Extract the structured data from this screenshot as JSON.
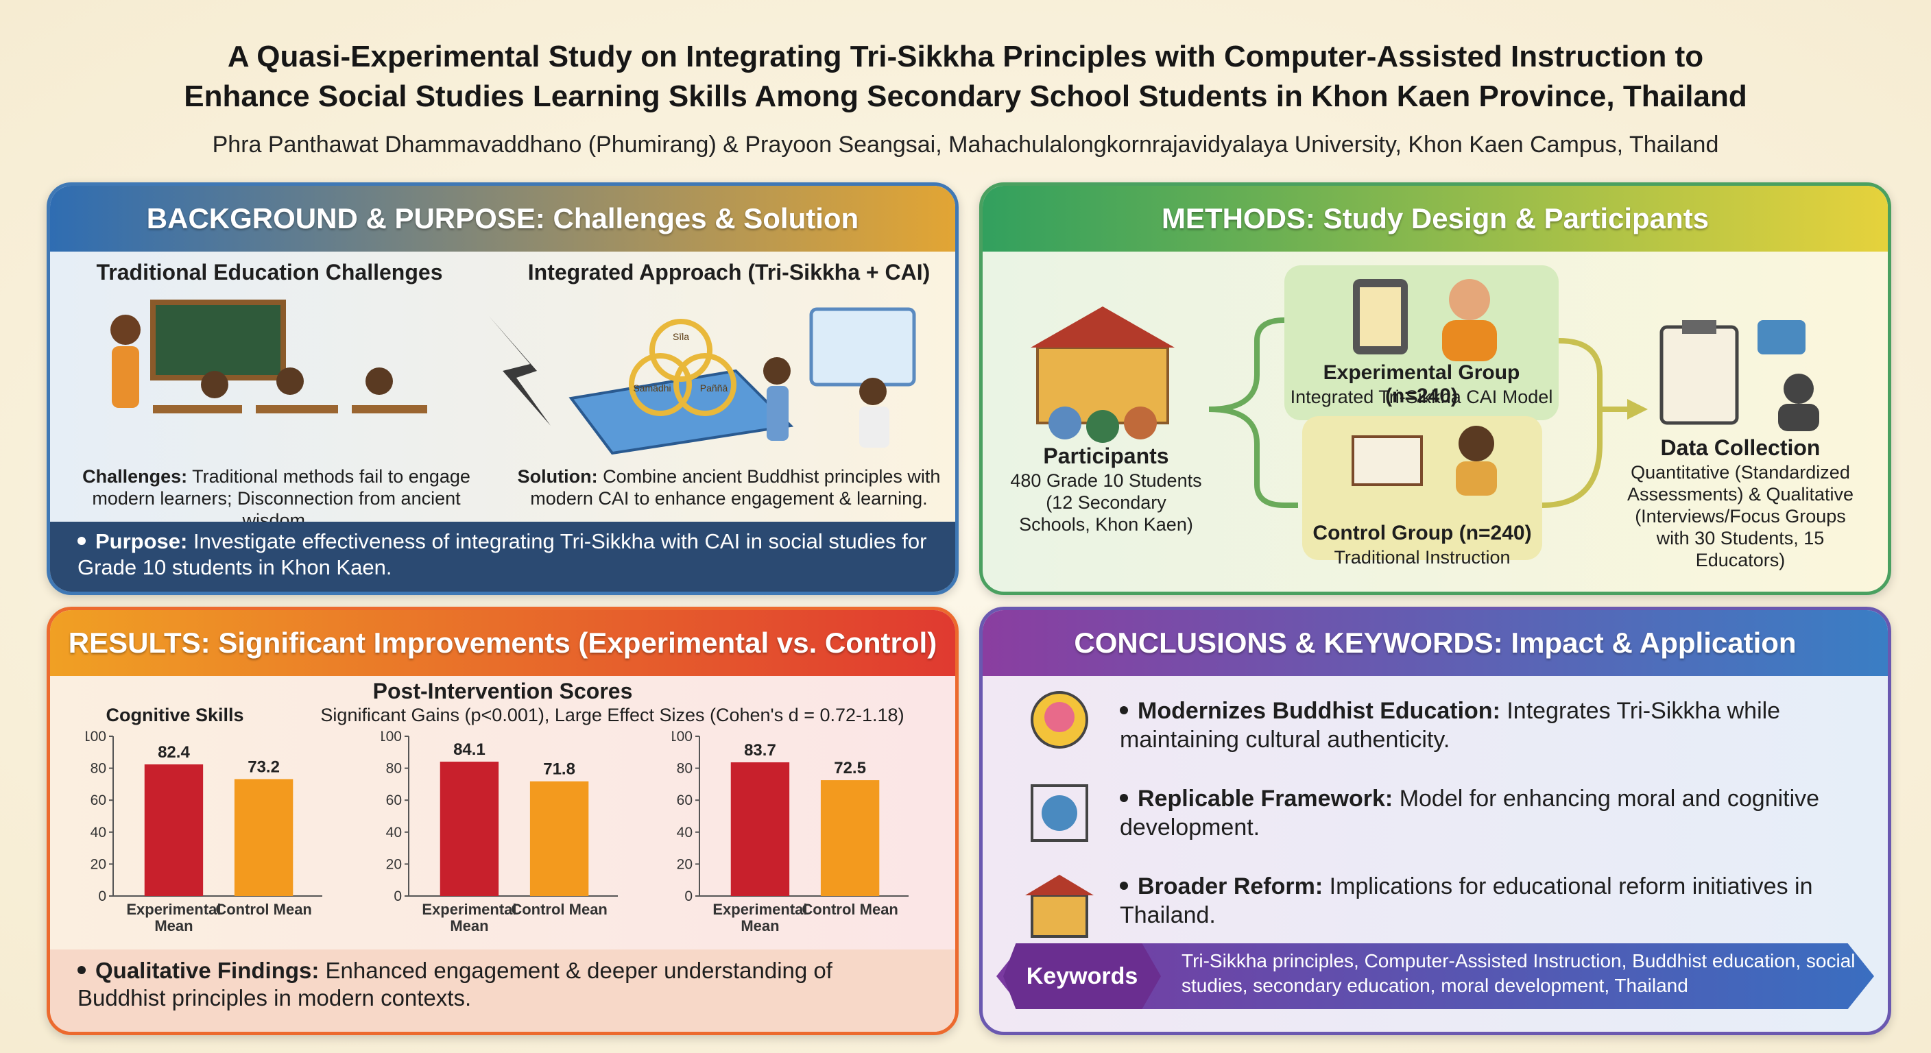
{
  "title_lines": [
    "A Quasi-Experimental Study on Integrating Tri-Sikkha Principles with Computer-Assisted Instruction to",
    "Enhance Social Studies Learning Skills Among Secondary School Students in Khon Kaen Province, Thailand"
  ],
  "authors": "Phra Panthawat Dhammavaddhano (Phumirang) & Prayoon Seangsai, Mahachulalongkornrajavidyalaya University, Khon Kaen Campus, Thailand",
  "background": {
    "heading": "BACKGROUND & PURPOSE: Challenges & Solution",
    "left_title": "Traditional Education Challenges",
    "right_title": "Integrated Approach (Tri-Sikkha + CAI)",
    "tri_labels": [
      "Sīla",
      "Samādhi",
      "Paññā"
    ],
    "challenges_label": "Challenges:",
    "challenges_text": "Traditional methods fail to engage modern learners; Disconnection from ancient wisdom.",
    "solution_label": "Solution:",
    "solution_text": "Combine ancient Buddhist principles with modern CAI to enhance engagement & learning.",
    "purpose_label": "Purpose:",
    "purpose_text": "Investigate effectiveness of integrating Tri-Sikkha with CAI in social studies for Grade 10 students in Khon Kaen."
  },
  "methods": {
    "heading": "METHODS: Study Design & Participants",
    "participants": {
      "title": "Participants",
      "text": "480 Grade 10 Students (12 Secondary Schools, Khon Kaen)"
    },
    "experimental": {
      "title": "Experimental Group (n=240)",
      "text": "Integrated Tri-Sikkha CAI Model"
    },
    "control": {
      "title": "Control Group (n=240)",
      "text": "Traditional Instruction"
    },
    "data_collection": {
      "title": "Data Collection",
      "text": "Quantitative (Standardized Assessments) & Qualitative (Interviews/Focus Groups with 30 Students, 15 Educators)"
    }
  },
  "results": {
    "heading": "RESULTS: Significant Improvements (Experimental vs. Control)",
    "chart_title": "Post-Intervention Scores",
    "chart_subtitle": "Significant Gains (p<0.001), Large Effect Sizes (Cohen's d = 0.72-1.18)",
    "qual_label": "Qualitative Findings:",
    "qual_text": "Enhanced engagement & deeper understanding of Buddhist principles in modern contexts."
  },
  "chart_data": [
    {
      "type": "bar",
      "title": "Cognitive Skills",
      "categories": [
        "Experimental Mean",
        "Control Mean"
      ],
      "values": [
        82.4,
        73.2
      ],
      "colors": [
        "#c8202c",
        "#f39a1e"
      ],
      "ylim": [
        0,
        100
      ],
      "yticks": [
        0,
        20,
        40,
        60,
        80,
        100
      ]
    },
    {
      "type": "bar",
      "categories": [
        "Experimental Mean",
        "Control Mean"
      ],
      "values": [
        84.1,
        71.8
      ],
      "colors": [
        "#c8202c",
        "#f39a1e"
      ],
      "ylim": [
        0,
        100
      ],
      "yticks": [
        0,
        20,
        40,
        60,
        80,
        100
      ]
    },
    {
      "type": "bar",
      "categories": [
        "Experimental Mean",
        "Control Mean"
      ],
      "values": [
        83.7,
        72.5
      ],
      "colors": [
        "#c8202c",
        "#f39a1e"
      ],
      "ylim": [
        0,
        100
      ],
      "yticks": [
        0,
        20,
        40,
        60,
        80,
        100
      ]
    }
  ],
  "conclusions": {
    "heading": "CONCLUSIONS & KEYWORDS: Impact & Application",
    "items": [
      {
        "label": "Modernizes Buddhist Education:",
        "text": "Integrates Tri-Sikkha while maintaining cultural authenticity."
      },
      {
        "label": "Replicable Framework:",
        "text": "Model for enhancing moral and cognitive development."
      },
      {
        "label": "Broader Reform:",
        "text": "Implications for educational reform initiatives in Thailand."
      }
    ],
    "keywords_label": "Keywords",
    "keywords": "Tri-Sikkha principles, Computer-Assisted Instruction, Buddhist education, social studies, secondary education, moral development, Thailand"
  }
}
